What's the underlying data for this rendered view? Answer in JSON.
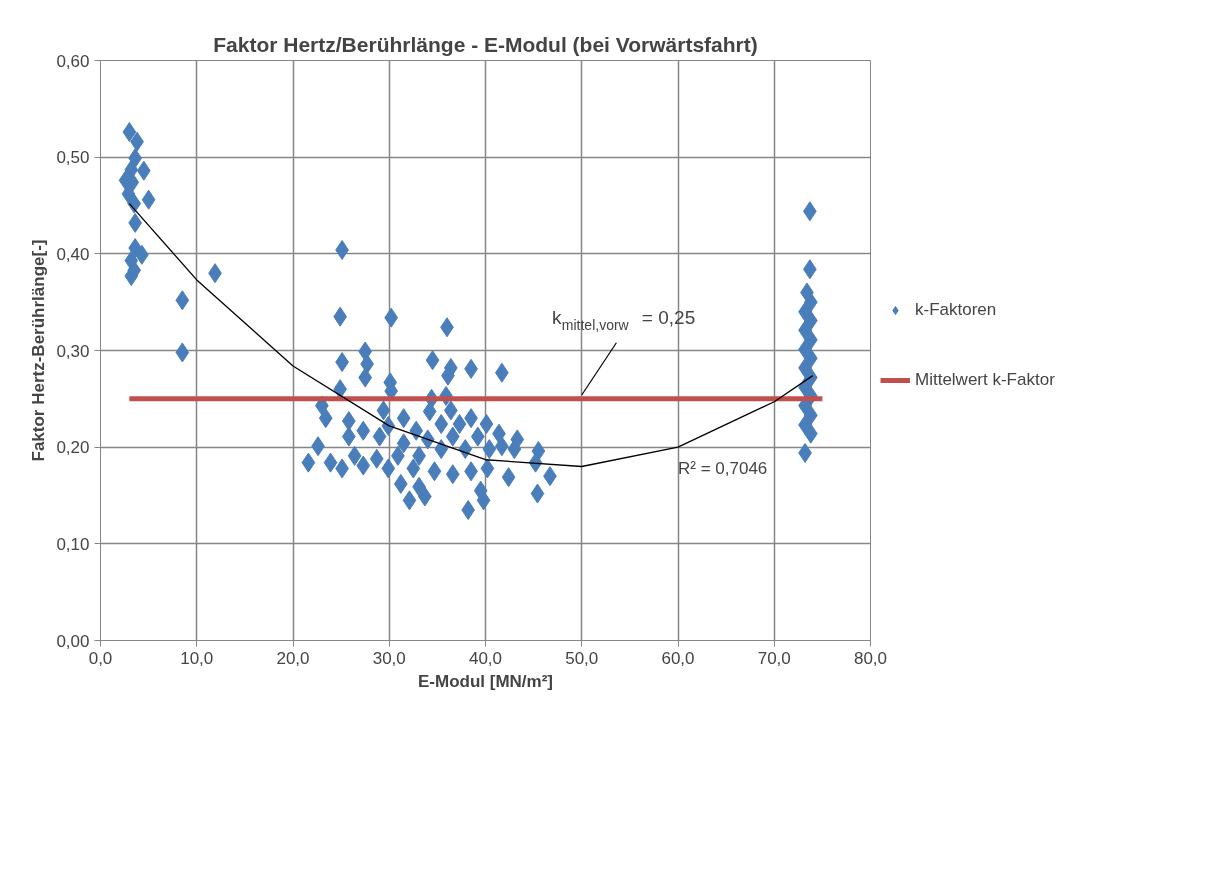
{
  "chart_data": {
    "type": "scatter",
    "title": "Faktor Hertz/Berührlänge - E-Modul (bei Vorwärtsfahrt)",
    "xlabel": "E-Modul [MN/m²]",
    "ylabel": "Faktor Hertz-Berührlänge[-]",
    "xlim": [
      0,
      80
    ],
    "ylim": [
      0,
      0.6
    ],
    "xticks": [
      {
        "value": 0,
        "label": "0,0"
      },
      {
        "value": 10,
        "label": "10,0"
      },
      {
        "value": 20,
        "label": "20,0"
      },
      {
        "value": 30,
        "label": "30,0"
      },
      {
        "value": 40,
        "label": "40,0"
      },
      {
        "value": 50,
        "label": "50,0"
      },
      {
        "value": 60,
        "label": "60,0"
      },
      {
        "value": 70,
        "label": "70,0"
      },
      {
        "value": 80,
        "label": "80,0"
      }
    ],
    "yticks": [
      {
        "value": 0,
        "label": "0,00"
      },
      {
        "value": 0.1,
        "label": "0,10"
      },
      {
        "value": 0.2,
        "label": "0,20"
      },
      {
        "value": 0.3,
        "label": "0,30"
      },
      {
        "value": 0.4,
        "label": "0,40"
      },
      {
        "value": 0.5,
        "label": "0,50"
      },
      {
        "value": 0.6,
        "label": "0,60"
      }
    ],
    "grid": true,
    "legend": "right",
    "series": [
      {
        "name": "k-Faktoren",
        "marker": "diamond",
        "color": "#4a7ebb",
        "x": [
          3.0,
          3.8,
          3.6,
          4.5,
          3.2,
          2.6,
          3.3,
          2.9,
          5.0,
          3.5,
          3.6,
          3.6,
          4.3,
          3.2,
          3.2,
          3.5,
          8.5,
          11.9,
          8.5,
          25.1,
          24.9,
          30.2,
          36.0,
          25.1,
          27.5,
          27.7,
          27.5,
          34.5,
          36.4,
          38.5,
          41.7,
          36.1,
          30.1,
          24.9,
          30.2,
          34.4,
          35.9,
          23.0,
          23.4,
          29.4,
          25.8,
          31.5,
          34.2,
          36.4,
          38.5,
          27.3,
          29.9,
          32.8,
          35.4,
          37.3,
          40.1,
          41.4,
          43.3,
          22.6,
          25.8,
          29.0,
          31.5,
          34.0,
          36.6,
          39.2,
          41.7,
          45.5,
          21.6,
          23.9,
          26.4,
          28.7,
          30.9,
          33.1,
          35.4,
          37.9,
          40.4,
          43.0,
          45.2,
          25.1,
          27.3,
          29.9,
          32.5,
          34.7,
          36.6,
          38.5,
          40.2,
          42.4,
          46.7,
          31.2,
          33.1,
          39.5,
          32.1,
          33.7,
          39.8,
          45.4,
          38.2,
          73.7,
          73.7,
          73.4,
          73.8,
          73.2,
          73.8,
          73.2,
          73.8,
          73.2,
          73.8,
          73.2,
          73.8,
          73.2,
          73.8,
          73.2,
          73.8,
          73.2,
          73.8,
          73.2
        ],
        "values": [
          0.526,
          0.516,
          0.499,
          0.486,
          0.487,
          0.476,
          0.474,
          0.462,
          0.456,
          0.452,
          0.432,
          0.406,
          0.399,
          0.393,
          0.377,
          0.383,
          0.352,
          0.38,
          0.298,
          0.404,
          0.335,
          0.334,
          0.324,
          0.288,
          0.299,
          0.286,
          0.272,
          0.29,
          0.282,
          0.281,
          0.277,
          0.274,
          0.267,
          0.26,
          0.258,
          0.25,
          0.253,
          0.243,
          0.23,
          0.238,
          0.227,
          0.23,
          0.237,
          0.238,
          0.23,
          0.217,
          0.222,
          0.217,
          0.224,
          0.224,
          0.224,
          0.214,
          0.208,
          0.201,
          0.211,
          0.211,
          0.204,
          0.208,
          0.211,
          0.211,
          0.201,
          0.196,
          0.184,
          0.184,
          0.191,
          0.188,
          0.191,
          0.191,
          0.198,
          0.198,
          0.198,
          0.198,
          0.184,
          0.178,
          0.181,
          0.178,
          0.178,
          0.175,
          0.172,
          0.175,
          0.178,
          0.169,
          0.17,
          0.162,
          0.159,
          0.155,
          0.145,
          0.149,
          0.145,
          0.152,
          0.135,
          0.444,
          0.384,
          0.36,
          0.35,
          0.34,
          0.331,
          0.321,
          0.311,
          0.301,
          0.292,
          0.282,
          0.272,
          0.262,
          0.253,
          0.243,
          0.233,
          0.223,
          0.214,
          0.194
        ]
      },
      {
        "name": "Mittelwert k-Faktor",
        "type": "line",
        "marker": "none",
        "color": "#c0504d",
        "x": [
          3.0,
          75.0
        ],
        "values": [
          0.25,
          0.25
        ]
      },
      {
        "type": "line",
        "marker": "none",
        "color": "#000000",
        "x": [
          3,
          10,
          20,
          30,
          40,
          50,
          60,
          70,
          74
        ],
        "values": [
          0.452,
          0.373,
          0.284,
          0.222,
          0.187,
          0.18,
          0.2,
          0.247,
          0.274
        ]
      }
    ],
    "annotations": [
      {
        "text": "k$_{mittel,vorw}$ = 0,25",
        "x": 50,
        "y": 0.25
      },
      "R² = 0,7046"
    ]
  }
}
